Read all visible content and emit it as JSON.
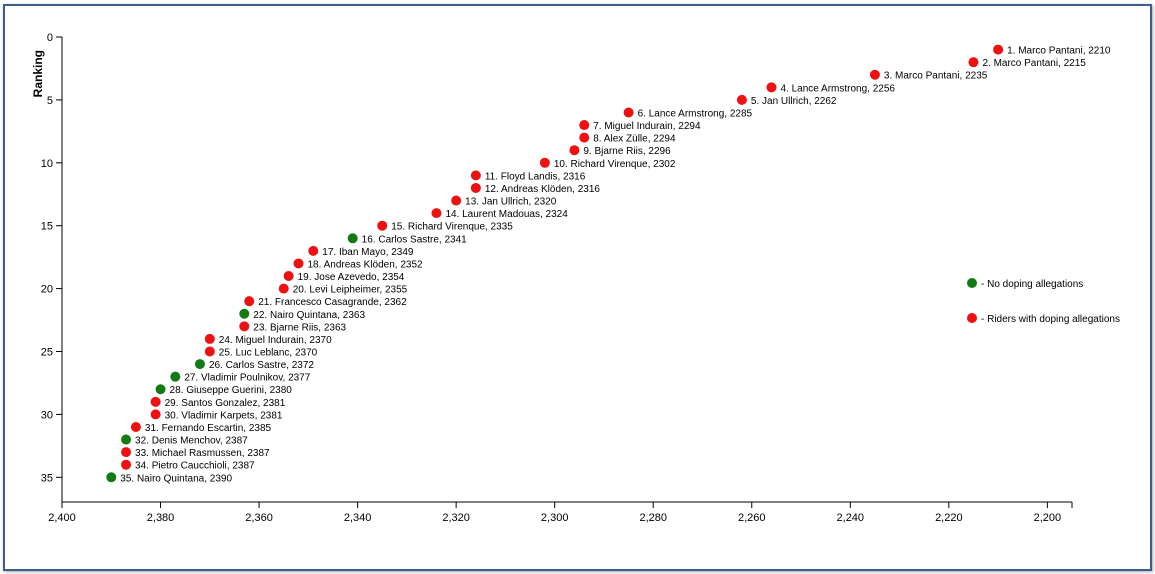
{
  "chart_data": {
    "type": "scatter",
    "title": "",
    "xlabel": "",
    "ylabel": "Ranking",
    "xlim": [
      2400,
      2195
    ],
    "x_reversed": true,
    "ylim": [
      0,
      37
    ],
    "y_reversed": true,
    "x_ticks": [
      2400,
      2380,
      2360,
      2340,
      2320,
      2300,
      2280,
      2260,
      2240,
      2220,
      2200
    ],
    "x_tick_labels": [
      "2,400",
      "2,380",
      "2,360",
      "2,340",
      "2,320",
      "2,300",
      "2,280",
      "2,260",
      "2,240",
      "2,220",
      "2,200"
    ],
    "y_ticks": [
      0,
      5,
      10,
      15,
      20,
      25,
      30,
      35
    ],
    "y_tick_labels": [
      "0",
      "5",
      "10",
      "15",
      "20",
      "25",
      "30",
      "35"
    ],
    "grid": false,
    "legend_position": "right",
    "colors": {
      "clean": "#137b13",
      "doping": "#ee1111"
    },
    "legend": [
      {
        "category": "clean",
        "label": "- No doping allegations"
      },
      {
        "category": "doping",
        "label": "- Riders with doping allegations"
      }
    ],
    "points": [
      {
        "rank": 1,
        "rider": "Marco Pantani",
        "x": 2210,
        "category": "doping",
        "label": "1. Marco Pantani, 2210"
      },
      {
        "rank": 2,
        "rider": "Marco Pantani",
        "x": 2215,
        "category": "doping",
        "label": "2. Marco Pantani, 2215"
      },
      {
        "rank": 3,
        "rider": "Marco Pantani",
        "x": 2235,
        "category": "doping",
        "label": "3. Marco Pantani, 2235"
      },
      {
        "rank": 4,
        "rider": "Lance Armstrong",
        "x": 2256,
        "category": "doping",
        "label": "4. Lance Armstrong, 2256"
      },
      {
        "rank": 5,
        "rider": "Jan Ullrich",
        "x": 2262,
        "category": "doping",
        "label": "5. Jan Ullrich, 2262"
      },
      {
        "rank": 6,
        "rider": "Lance Armstrong",
        "x": 2285,
        "category": "doping",
        "label": "6. Lance Armstrong, 2285"
      },
      {
        "rank": 7,
        "rider": "Miguel Indurain",
        "x": 2294,
        "category": "doping",
        "label": "7. Miguel Indurain, 2294"
      },
      {
        "rank": 8,
        "rider": "Alex Zülle",
        "x": 2294,
        "category": "doping",
        "label": "8. Alex Zülle, 2294"
      },
      {
        "rank": 9,
        "rider": "Bjarne Riis",
        "x": 2296,
        "category": "doping",
        "label": "9. Bjarne Riis, 2296"
      },
      {
        "rank": 10,
        "rider": "Richard Virenque",
        "x": 2302,
        "category": "doping",
        "label": "10. Richard Virenque, 2302"
      },
      {
        "rank": 11,
        "rider": "Floyd Landis",
        "x": 2316,
        "category": "doping",
        "label": "11. Floyd Landis, 2316"
      },
      {
        "rank": 12,
        "rider": "Andreas Klöden",
        "x": 2316,
        "category": "doping",
        "label": "12. Andreas Klöden, 2316"
      },
      {
        "rank": 13,
        "rider": "Jan Ullrich",
        "x": 2320,
        "category": "doping",
        "label": "13. Jan Ullrich, 2320"
      },
      {
        "rank": 14,
        "rider": "Laurent Madouas",
        "x": 2324,
        "category": "doping",
        "label": "14. Laurent Madouas, 2324"
      },
      {
        "rank": 15,
        "rider": "Richard Virenque",
        "x": 2335,
        "category": "doping",
        "label": "15. Richard Virenque, 2335"
      },
      {
        "rank": 16,
        "rider": "Carlos Sastre",
        "x": 2341,
        "category": "clean",
        "label": "16. Carlos Sastre, 2341"
      },
      {
        "rank": 17,
        "rider": "Iban Mayo",
        "x": 2349,
        "category": "doping",
        "label": "17. Iban Mayo, 2349"
      },
      {
        "rank": 18,
        "rider": "Andreas Klöden",
        "x": 2352,
        "category": "doping",
        "label": "18. Andreas Klöden, 2352"
      },
      {
        "rank": 19,
        "rider": "Jose Azevedo",
        "x": 2354,
        "category": "doping",
        "label": "19. Jose Azevedo, 2354"
      },
      {
        "rank": 20,
        "rider": "Levi Leipheimer",
        "x": 2355,
        "category": "doping",
        "label": "20. Levi Leipheimer, 2355"
      },
      {
        "rank": 21,
        "rider": "Francesco Casagrande",
        "x": 2362,
        "category": "doping",
        "label": "21. Francesco Casagrande, 2362"
      },
      {
        "rank": 22,
        "rider": "Nairo Quintana",
        "x": 2363,
        "category": "clean",
        "label": "22. Nairo Quintana, 2363"
      },
      {
        "rank": 23,
        "rider": "Bjarne Riis",
        "x": 2363,
        "category": "doping",
        "label": "23. Bjarne Riis, 2363"
      },
      {
        "rank": 24,
        "rider": "Miguel Indurain",
        "x": 2370,
        "category": "doping",
        "label": "24. Miguel Indurain, 2370"
      },
      {
        "rank": 25,
        "rider": "Luc Leblanc",
        "x": 2370,
        "category": "doping",
        "label": "25. Luc Leblanc, 2370"
      },
      {
        "rank": 26,
        "rider": "Carlos Sastre",
        "x": 2372,
        "category": "clean",
        "label": "26. Carlos Sastre, 2372"
      },
      {
        "rank": 27,
        "rider": "Vladimir Poulnikov",
        "x": 2377,
        "category": "clean",
        "label": "27. Vladimir Poulnikov, 2377"
      },
      {
        "rank": 28,
        "rider": "Giuseppe Guerini",
        "x": 2380,
        "category": "clean",
        "label": "28. Giuseppe Guerini, 2380"
      },
      {
        "rank": 29,
        "rider": "Santos Gonzalez",
        "x": 2381,
        "category": "doping",
        "label": "29. Santos Gonzalez, 2381"
      },
      {
        "rank": 30,
        "rider": "Vladimir Karpets",
        "x": 2381,
        "category": "doping",
        "label": "30. Vladimir Karpets, 2381"
      },
      {
        "rank": 31,
        "rider": "Fernando Escartin",
        "x": 2385,
        "category": "doping",
        "label": "31. Fernando Escartin, 2385"
      },
      {
        "rank": 32,
        "rider": "Denis Menchov",
        "x": 2387,
        "category": "clean",
        "label": "32. Denis Menchov, 2387"
      },
      {
        "rank": 33,
        "rider": "Michael Rasmussen",
        "x": 2387,
        "category": "doping",
        "label": "33. Michael Rasmussen, 2387"
      },
      {
        "rank": 34,
        "rider": "Pietro Caucchioli",
        "x": 2387,
        "category": "doping",
        "label": "34. Pietro Caucchioli, 2387"
      },
      {
        "rank": 35,
        "rider": "Nairo Quintana",
        "x": 2390,
        "category": "clean",
        "label": "35. Nairo Quintana, 2390"
      }
    ]
  }
}
